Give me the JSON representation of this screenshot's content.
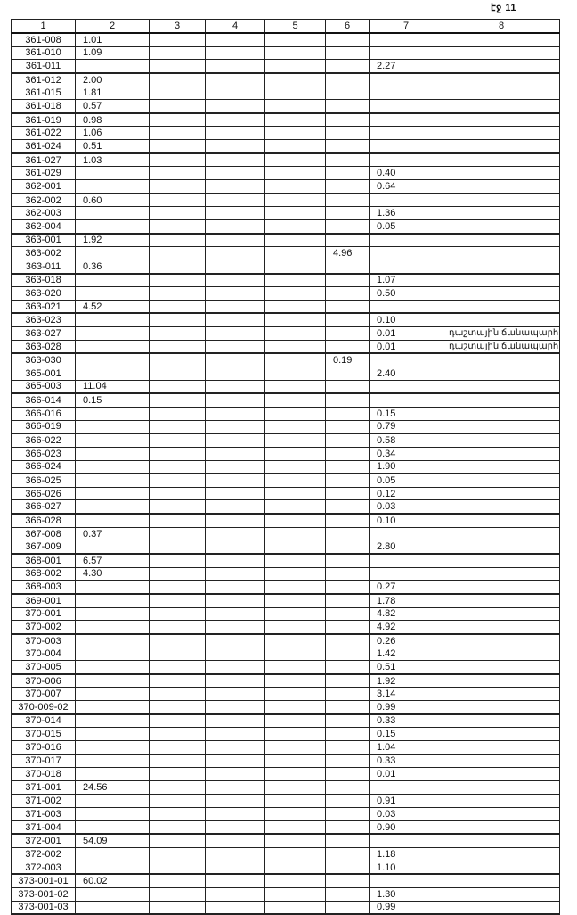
{
  "page_label": "էջ 11",
  "columns": [
    "1",
    "2",
    "3",
    "4",
    "5",
    "6",
    "7",
    "8"
  ],
  "rows": [
    [
      "361-008",
      "1.01",
      "",
      "",
      "",
      "",
      "",
      ""
    ],
    [
      "361-010",
      "1.09",
      "",
      "",
      "",
      "",
      "",
      ""
    ],
    [
      "361-011",
      "",
      "",
      "",
      "",
      "",
      "2.27",
      ""
    ],
    [
      "361-012",
      "2.00",
      "",
      "",
      "",
      "",
      "",
      ""
    ],
    [
      "361-015",
      "1.81",
      "",
      "",
      "",
      "",
      "",
      ""
    ],
    [
      "361-018",
      "0.57",
      "",
      "",
      "",
      "",
      "",
      ""
    ],
    [
      "361-019",
      "0.98",
      "",
      "",
      "",
      "",
      "",
      ""
    ],
    [
      "361-022",
      "1.06",
      "",
      "",
      "",
      "",
      "",
      ""
    ],
    [
      "361-024",
      "0.51",
      "",
      "",
      "",
      "",
      "",
      ""
    ],
    [
      "361-027",
      "1.03",
      "",
      "",
      "",
      "",
      "",
      ""
    ],
    [
      "361-029",
      "",
      "",
      "",
      "",
      "",
      "0.40",
      ""
    ],
    [
      "362-001",
      "",
      "",
      "",
      "",
      "",
      "0.64",
      ""
    ],
    [
      "362-002",
      "0.60",
      "",
      "",
      "",
      "",
      "",
      ""
    ],
    [
      "362-003",
      "",
      "",
      "",
      "",
      "",
      "1.36",
      ""
    ],
    [
      "362-004",
      "",
      "",
      "",
      "",
      "",
      "0.05",
      ""
    ],
    [
      "363-001",
      "1.92",
      "",
      "",
      "",
      "",
      "",
      ""
    ],
    [
      "363-002",
      "",
      "",
      "",
      "",
      "4.96",
      "",
      ""
    ],
    [
      "363-011",
      "0.36",
      "",
      "",
      "",
      "",
      "",
      ""
    ],
    [
      "363-018",
      "",
      "",
      "",
      "",
      "",
      "1.07",
      ""
    ],
    [
      "363-020",
      "",
      "",
      "",
      "",
      "",
      "0.50",
      ""
    ],
    [
      "363-021",
      "4.52",
      "",
      "",
      "",
      "",
      "",
      ""
    ],
    [
      "363-023",
      "",
      "",
      "",
      "",
      "",
      "0.10",
      ""
    ],
    [
      "363-027",
      "",
      "",
      "",
      "",
      "",
      "0.01",
      "դաշտային ճանապարհ"
    ],
    [
      "363-028",
      "",
      "",
      "",
      "",
      "",
      "0.01",
      "դաշտային ճանապարհ"
    ],
    [
      "363-030",
      "",
      "",
      "",
      "",
      "0.19",
      "",
      ""
    ],
    [
      "365-001",
      "",
      "",
      "",
      "",
      "",
      "2.40",
      ""
    ],
    [
      "365-003",
      "11.04",
      "",
      "",
      "",
      "",
      "",
      ""
    ],
    [
      "366-014",
      "0.15",
      "",
      "",
      "",
      "",
      "",
      ""
    ],
    [
      "366-016",
      "",
      "",
      "",
      "",
      "",
      "0.15",
      ""
    ],
    [
      "366-019",
      "",
      "",
      "",
      "",
      "",
      "0.79",
      ""
    ],
    [
      "366-022",
      "",
      "",
      "",
      "",
      "",
      "0.58",
      ""
    ],
    [
      "366-023",
      "",
      "",
      "",
      "",
      "",
      "0.34",
      ""
    ],
    [
      "366-024",
      "",
      "",
      "",
      "",
      "",
      "1.90",
      ""
    ],
    [
      "366-025",
      "",
      "",
      "",
      "",
      "",
      "0.05",
      ""
    ],
    [
      "366-026",
      "",
      "",
      "",
      "",
      "",
      "0.12",
      ""
    ],
    [
      "366-027",
      "",
      "",
      "",
      "",
      "",
      "0.03",
      ""
    ],
    [
      "366-028",
      "",
      "",
      "",
      "",
      "",
      "0.10",
      ""
    ],
    [
      "367-008",
      "0.37",
      "",
      "",
      "",
      "",
      "",
      ""
    ],
    [
      "367-009",
      "",
      "",
      "",
      "",
      "",
      "2.80",
      ""
    ],
    [
      "368-001",
      "6.57",
      "",
      "",
      "",
      "",
      "",
      ""
    ],
    [
      "368-002",
      "4.30",
      "",
      "",
      "",
      "",
      "",
      ""
    ],
    [
      "368-003",
      "",
      "",
      "",
      "",
      "",
      "0.27",
      ""
    ],
    [
      "369-001",
      "",
      "",
      "",
      "",
      "",
      "1.78",
      ""
    ],
    [
      "370-001",
      "",
      "",
      "",
      "",
      "",
      "4.82",
      ""
    ],
    [
      "370-002",
      "",
      "",
      "",
      "",
      "",
      "4.92",
      ""
    ],
    [
      "370-003",
      "",
      "",
      "",
      "",
      "",
      "0.26",
      ""
    ],
    [
      "370-004",
      "",
      "",
      "",
      "",
      "",
      "1.42",
      ""
    ],
    [
      "370-005",
      "",
      "",
      "",
      "",
      "",
      "0.51",
      ""
    ],
    [
      "370-006",
      "",
      "",
      "",
      "",
      "",
      "1.92",
      ""
    ],
    [
      "370-007",
      "",
      "",
      "",
      "",
      "",
      "3.14",
      ""
    ],
    [
      "370-009-02",
      "",
      "",
      "",
      "",
      "",
      "0.99",
      ""
    ],
    [
      "370-014",
      "",
      "",
      "",
      "",
      "",
      "0.33",
      ""
    ],
    [
      "370-015",
      "",
      "",
      "",
      "",
      "",
      "0.15",
      ""
    ],
    [
      "370-016",
      "",
      "",
      "",
      "",
      "",
      "1.04",
      ""
    ],
    [
      "370-017",
      "",
      "",
      "",
      "",
      "",
      "0.33",
      ""
    ],
    [
      "370-018",
      "",
      "",
      "",
      "",
      "",
      "0.01",
      ""
    ],
    [
      "371-001",
      "24.56",
      "",
      "",
      "",
      "",
      "",
      ""
    ],
    [
      "371-002",
      "",
      "",
      "",
      "",
      "",
      "0.91",
      ""
    ],
    [
      "371-003",
      "",
      "",
      "",
      "",
      "",
      "0.03",
      ""
    ],
    [
      "371-004",
      "",
      "",
      "",
      "",
      "",
      "0.90",
      ""
    ],
    [
      "372-001",
      "54.09",
      "",
      "",
      "",
      "",
      "",
      ""
    ],
    [
      "372-002",
      "",
      "",
      "",
      "",
      "",
      "1.18",
      ""
    ],
    [
      "372-003",
      "",
      "",
      "",
      "",
      "",
      "1.10",
      ""
    ],
    [
      "373-001-01",
      "60.02",
      "",
      "",
      "",
      "",
      "",
      ""
    ],
    [
      "373-001-02",
      "",
      "",
      "",
      "",
      "",
      "1.30",
      ""
    ],
    [
      "373-001-03",
      "",
      "",
      "",
      "",
      "",
      "0.99",
      ""
    ]
  ]
}
